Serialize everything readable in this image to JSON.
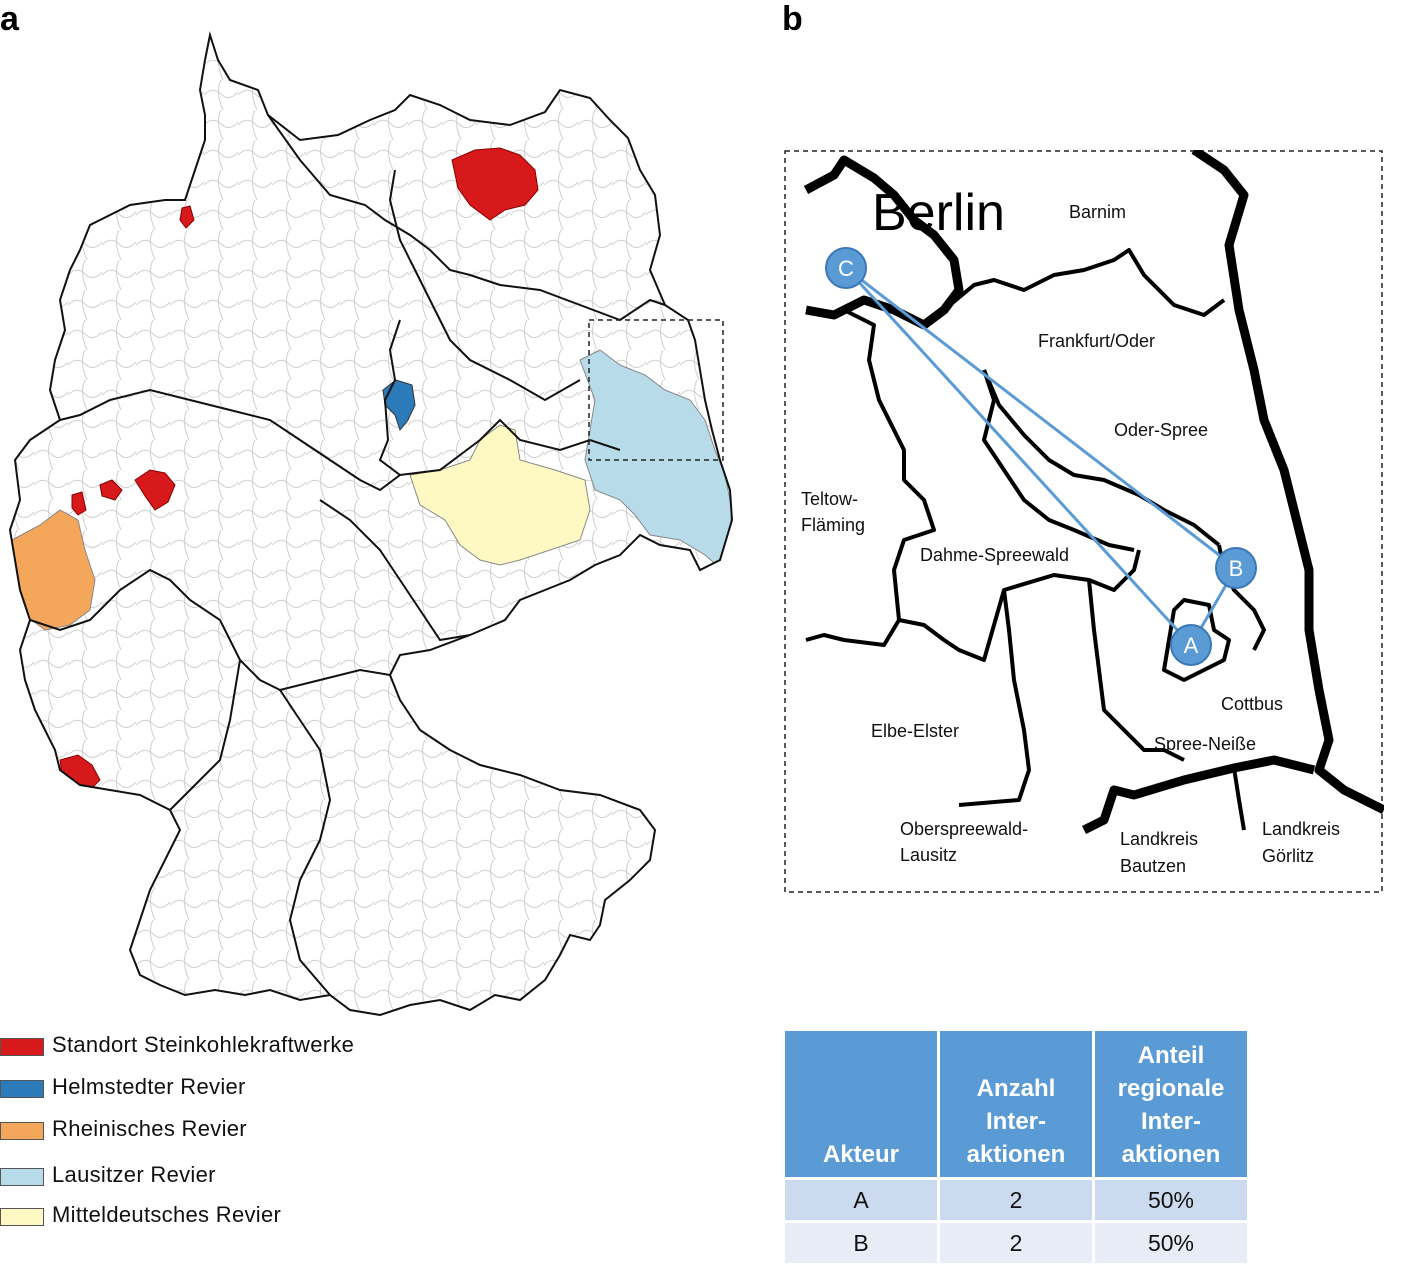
{
  "panels": {
    "a": "a",
    "b": "b"
  },
  "legend": {
    "items": [
      {
        "label": "Standort Steinkohlekraftwerke",
        "color": "#d7191c"
      },
      {
        "label": "Helmstedter Revier",
        "color": "#2b7bba"
      },
      {
        "label": "Rheinisches Revier",
        "color": "#f4a65a"
      },
      {
        "label": "Lausitzer Revier",
        "color": "#b7dbe9"
      },
      {
        "label": "Mitteldeutsches Revier",
        "color": "#fef9c3"
      }
    ]
  },
  "inset": {
    "places": {
      "berlin": "Berlin",
      "barnim": "Barnim",
      "frankfurt": "Frankfurt/Oder",
      "oder_spree": "Oder-Spree",
      "teltow_1": "Teltow-",
      "teltow_2": "Fläming",
      "dahme": "Dahme-Spreewald",
      "cottbus": "Cottbus",
      "elbe_elster": "Elbe-Elster",
      "spree_neisse": "Spree-Neiße",
      "oberspreewald_1": "Oberspreewald-",
      "oberspreewald_2": "Lausitz",
      "bautzen_1": "Landkreis",
      "bautzen_2": "Bautzen",
      "goerlitz_1": "Landkreis",
      "goerlitz_2": "Görlitz"
    },
    "actors": {
      "a": "A",
      "b": "B",
      "c": "C"
    },
    "interactions": [
      [
        "C",
        "A"
      ],
      [
        "C",
        "B"
      ],
      [
        "A",
        "B"
      ]
    ]
  },
  "table": {
    "header_actor": "Akteur",
    "header_count": [
      "Anzahl",
      "Inter-",
      "aktionen"
    ],
    "header_share": [
      "Anteil",
      "regionale",
      "Inter-",
      "aktionen"
    ],
    "rows": [
      {
        "actor": "A",
        "count": "2",
        "share": "50%"
      },
      {
        "actor": "B",
        "count": "2",
        "share": "50%"
      }
    ]
  }
}
